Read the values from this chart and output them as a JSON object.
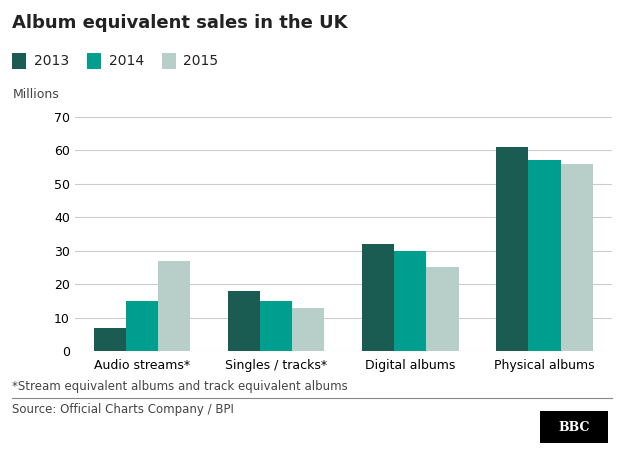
{
  "title": "Album equivalent sales in the UK",
  "ylabel": "Millions",
  "ylim": [
    0,
    70
  ],
  "yticks": [
    0,
    10,
    20,
    30,
    40,
    50,
    60,
    70
  ],
  "categories": [
    "Audio streams*",
    "Singles / tracks*",
    "Digital albums",
    "Physical albums"
  ],
  "years": [
    "2013",
    "2014",
    "2015"
  ],
  "values": {
    "2013": [
      7,
      18,
      32,
      61
    ],
    "2014": [
      15,
      15,
      30,
      57
    ],
    "2015": [
      27,
      13,
      25,
      56
    ]
  },
  "colors": {
    "2013": "#1a5c52",
    "2014": "#009e8e",
    "2015": "#b8cec9"
  },
  "bar_width": 0.24,
  "footnote": "*Stream equivalent albums and track equivalent albums",
  "source": "Source: Official Charts Company / BPI",
  "bbc_label": "BBC",
  "background_color": "#ffffff",
  "grid_color": "#cccccc",
  "title_fontsize": 13,
  "legend_fontsize": 10,
  "axis_fontsize": 9,
  "footnote_fontsize": 8.5,
  "source_fontsize": 8.5
}
